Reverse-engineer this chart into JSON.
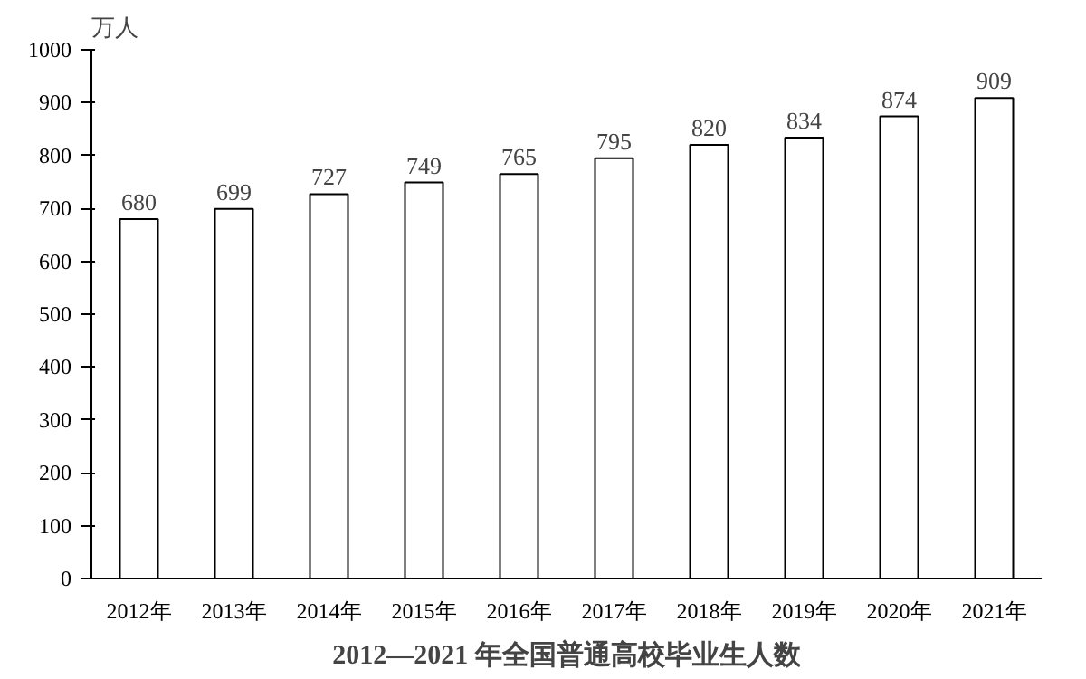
{
  "chart_data": {
    "type": "bar",
    "title": "2012—2021 年全国普通高校毕业生人数",
    "ylabel": "万人",
    "categories": [
      "2012年",
      "2013年",
      "2014年",
      "2015年",
      "2016年",
      "2017年",
      "2018年",
      "2019年",
      "2020年",
      "2021年"
    ],
    "values": [
      680,
      699,
      727,
      749,
      765,
      795,
      820,
      834,
      874,
      909
    ],
    "color": "#ffffff",
    "ylim": [
      0,
      1000
    ],
    "yticks": [
      0,
      100,
      200,
      300,
      400,
      500,
      600,
      700,
      800,
      900,
      1000
    ],
    "data_labels": true
  }
}
